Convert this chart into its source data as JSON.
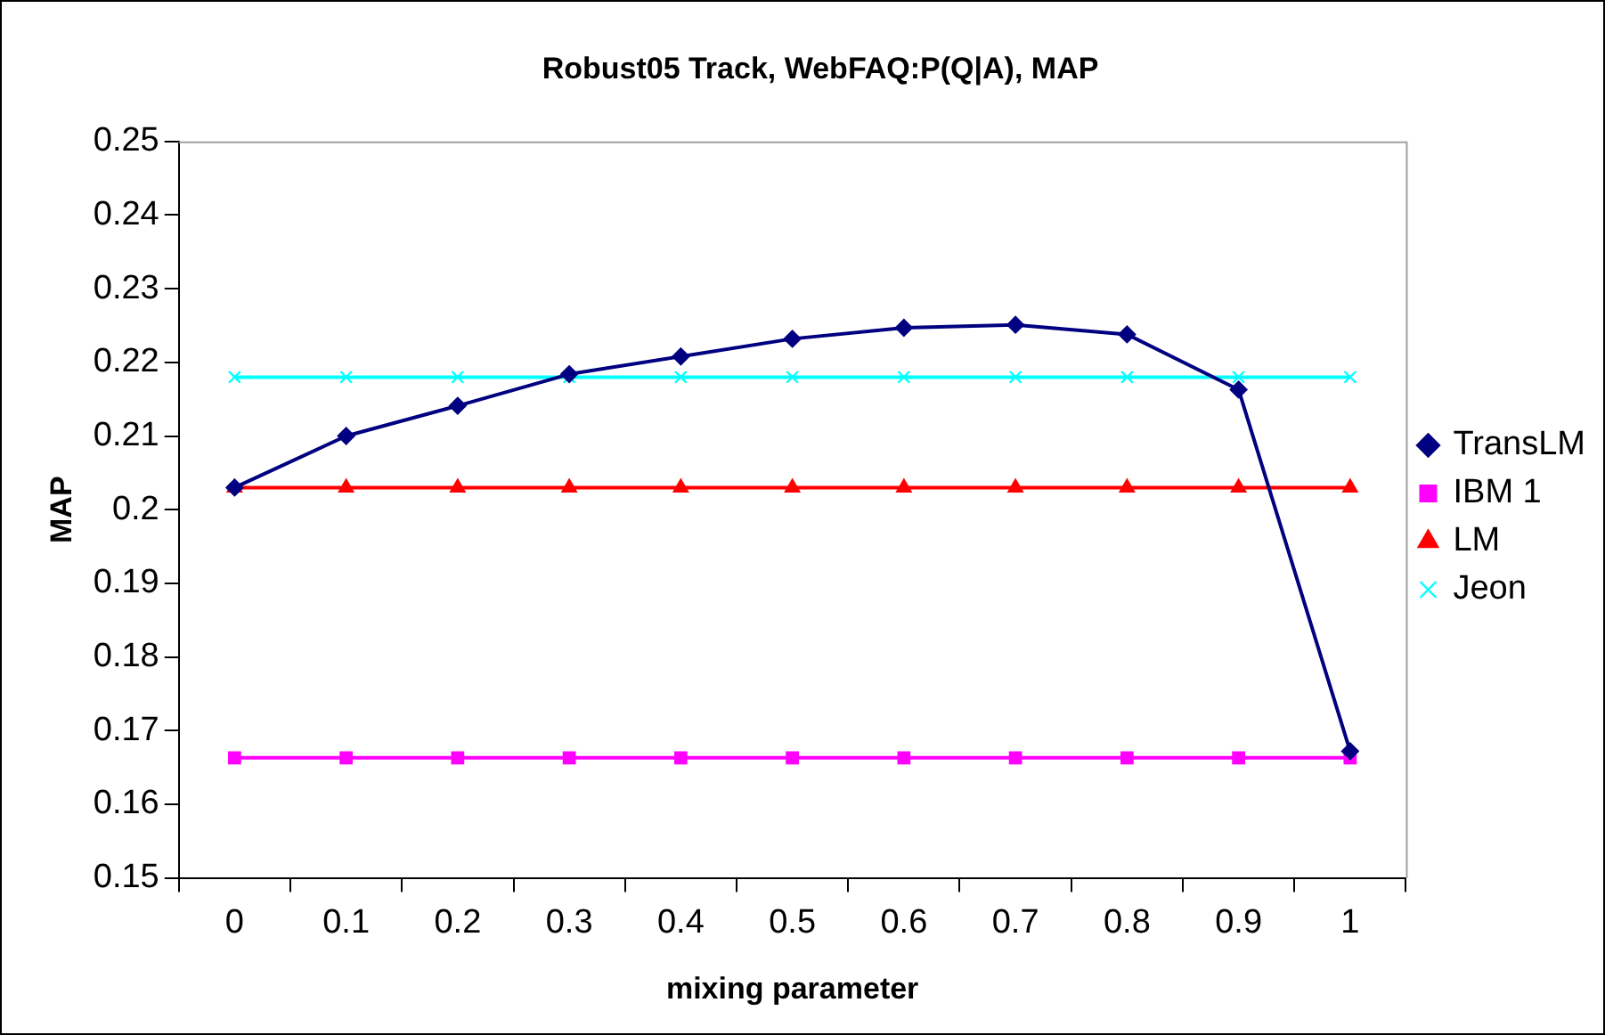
{
  "chart_data": {
    "type": "line",
    "title": "Robust05 Track, WebFAQ:P(Q|A), MAP",
    "xlabel": "mixing parameter",
    "ylabel": "MAP",
    "categories": [
      "0",
      "0.1",
      "0.2",
      "0.3",
      "0.4",
      "0.5",
      "0.6",
      "0.7",
      "0.8",
      "0.9",
      "1"
    ],
    "series": [
      {
        "name": "TransLM",
        "color": "#000080",
        "marker": "diamond",
        "values": [
          0.203,
          0.21,
          0.2141,
          0.2184,
          0.2208,
          0.2232,
          0.2247,
          0.2251,
          0.2238,
          0.2163,
          0.1672
        ]
      },
      {
        "name": "IBM 1",
        "color": "#ff00ff",
        "marker": "square",
        "values": [
          0.1663,
          0.1663,
          0.1663,
          0.1663,
          0.1663,
          0.1663,
          0.1663,
          0.1663,
          0.1663,
          0.1663,
          0.1663
        ]
      },
      {
        "name": "LM",
        "color": "#ff0000",
        "marker": "triangle",
        "values": [
          0.203,
          0.203,
          0.203,
          0.203,
          0.203,
          0.203,
          0.203,
          0.203,
          0.203,
          0.203,
          0.203
        ]
      },
      {
        "name": "Jeon",
        "color": "#00ffff",
        "marker": "cross",
        "values": [
          0.218,
          0.218,
          0.218,
          0.218,
          0.218,
          0.218,
          0.218,
          0.218,
          0.218,
          0.218,
          0.218
        ]
      }
    ],
    "ylim": [
      0.15,
      0.25
    ],
    "yticks": [
      0.15,
      0.16,
      0.17,
      0.18,
      0.19,
      0.2,
      0.21,
      0.22,
      0.23,
      0.24,
      0.25
    ],
    "grid": false,
    "legend": "right"
  }
}
